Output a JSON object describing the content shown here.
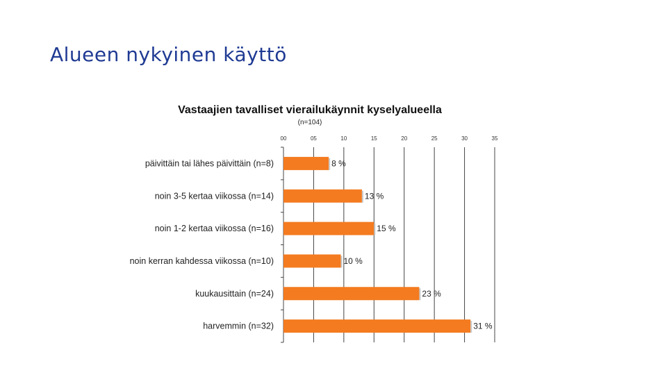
{
  "slide": {
    "title": "Alueen nykyinen käyttö"
  },
  "chart_data": {
    "type": "bar",
    "orientation": "horizontal",
    "title": "Vastaajien tavalliset vierailukäynnit kyselyalueella",
    "subtitle": "(n=104)",
    "categories": [
      "päivittäin tai lähes päivittäin (n=8)",
      "noin 3-5 kertaa viikossa (n=14)",
      "noin 1-2 kertaa viikossa (n=16)",
      "noin kerran kahdessa viikossa (n=10)",
      "kuukausittain (n=24)",
      "harvemmin (n=32)"
    ],
    "values": [
      7.5,
      13.0,
      15.0,
      9.5,
      22.5,
      31.0
    ],
    "data_labels": [
      "8 %",
      "13 %",
      "15 %",
      "10 %",
      "23 %",
      "31 %"
    ],
    "x_ticks": [
      0,
      5,
      10,
      15,
      20,
      25,
      30,
      35
    ],
    "x_tick_labels": [
      "00",
      "05",
      "10",
      "15",
      "20",
      "25",
      "30",
      "35"
    ],
    "xlim": [
      0,
      35
    ],
    "grid": true,
    "bar_color": "#f47b20"
  }
}
